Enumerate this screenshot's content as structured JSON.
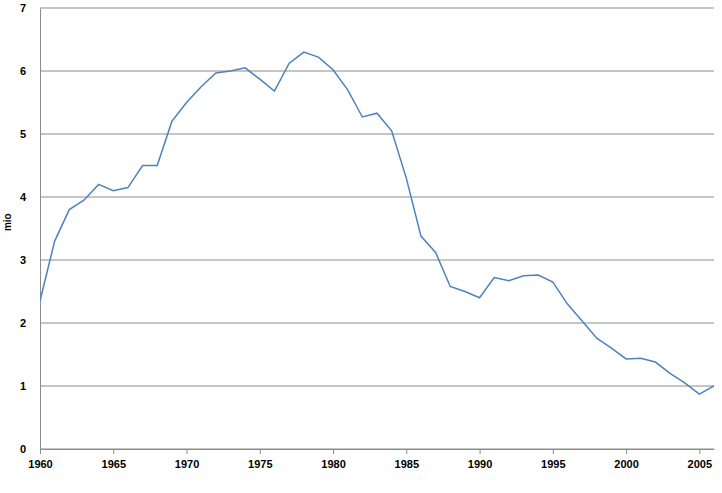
{
  "chart_data": {
    "type": "line",
    "y_label": "mio",
    "x": [
      1960,
      1961,
      1962,
      1963,
      1964,
      1965,
      1966,
      1967,
      1968,
      1969,
      1970,
      1971,
      1972,
      1973,
      1974,
      1975,
      1976,
      1977,
      1978,
      1979,
      1980,
      1981,
      1982,
      1983,
      1984,
      1985,
      1986,
      1987,
      1988,
      1989,
      1990,
      1991,
      1992,
      1993,
      1994,
      1995,
      1996,
      1997,
      1998,
      1999,
      2000,
      2001,
      2002,
      2003,
      2004,
      2005,
      2006
    ],
    "values": [
      2.35,
      3.3,
      3.8,
      3.95,
      4.2,
      4.1,
      4.15,
      4.5,
      4.5,
      5.2,
      5.5,
      5.75,
      5.97,
      6.0,
      6.05,
      5.87,
      5.68,
      6.12,
      6.3,
      6.22,
      6.02,
      5.7,
      5.27,
      5.33,
      5.05,
      4.3,
      3.38,
      3.12,
      2.58,
      2.5,
      2.4,
      2.72,
      2.67,
      2.75,
      2.76,
      2.65,
      2.3,
      2.03,
      1.76,
      1.6,
      1.43,
      1.44,
      1.38,
      1.2,
      1.05,
      0.87,
      1.0
    ],
    "color": "#4f81bd",
    "xlim": [
      1960,
      2006
    ],
    "xticks": [
      1960,
      1965,
      1970,
      1975,
      1980,
      1985,
      1990,
      1995,
      2000,
      2005
    ],
    "ylim": [
      0,
      7
    ],
    "yticks": [
      0,
      1,
      2,
      3,
      4,
      5,
      6,
      7
    ],
    "grid": true
  }
}
